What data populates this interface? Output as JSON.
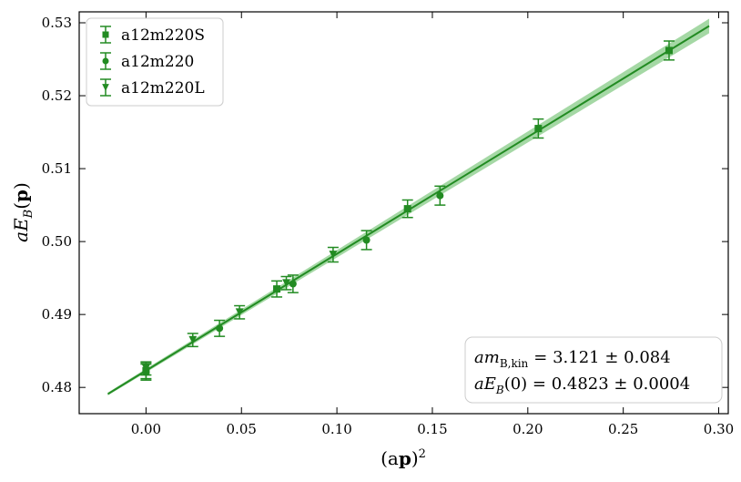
{
  "chart_data": {
    "type": "scatter",
    "xlabel": "(ap)²",
    "ylabel": "aE_B(p)",
    "xlim": [
      -0.035,
      0.305
    ],
    "ylim": [
      0.4764,
      0.5315
    ],
    "xticks": [
      0.0,
      0.05,
      0.1,
      0.15,
      0.2,
      0.25,
      0.3
    ],
    "xtick_labels": [
      "0.00",
      "0.05",
      "0.10",
      "0.15",
      "0.20",
      "0.25",
      "0.30"
    ],
    "yticks": [
      0.48,
      0.49,
      0.5,
      0.51,
      0.52,
      0.53
    ],
    "ytick_labels": [
      "0.48",
      "0.49",
      "0.50",
      "0.51",
      "0.52",
      "0.53"
    ],
    "grid": false,
    "legend_position": "top-left",
    "color": "#228b22",
    "band_color": "#7fc77f",
    "series": [
      {
        "name": "a12m220S",
        "marker": "square",
        "points": [
          {
            "x": 0.0,
            "y": 0.4823,
            "err": 0.0011
          },
          {
            "x": 0.0685,
            "y": 0.4935,
            "err": 0.0011
          },
          {
            "x": 0.137,
            "y": 0.5045,
            "err": 0.0012
          },
          {
            "x": 0.2055,
            "y": 0.5155,
            "err": 0.0013
          },
          {
            "x": 0.274,
            "y": 0.5262,
            "err": 0.0013
          }
        ]
      },
      {
        "name": "a12m220",
        "marker": "circle",
        "points": [
          {
            "x": 0.0,
            "y": 0.4821,
            "err": 0.0011
          },
          {
            "x": 0.0385,
            "y": 0.4881,
            "err": 0.0011
          },
          {
            "x": 0.077,
            "y": 0.4942,
            "err": 0.0012
          },
          {
            "x": 0.1155,
            "y": 0.5002,
            "err": 0.0013
          },
          {
            "x": 0.154,
            "y": 0.5063,
            "err": 0.0013
          }
        ]
      },
      {
        "name": "a12m220L",
        "marker": "triangle-down",
        "points": [
          {
            "x": 0.0,
            "y": 0.4826,
            "err": 0.0009
          },
          {
            "x": 0.0245,
            "y": 0.4865,
            "err": 0.0009
          },
          {
            "x": 0.049,
            "y": 0.4903,
            "err": 0.0009
          },
          {
            "x": 0.0735,
            "y": 0.4943,
            "err": 0.0009
          },
          {
            "x": 0.098,
            "y": 0.4982,
            "err": 0.001
          }
        ]
      }
    ],
    "fit": {
      "x_range": [
        -0.02,
        0.295
      ],
      "intercept": 0.4823,
      "slope": 0.1602,
      "band_start": 0.0002,
      "band_end": 0.001
    },
    "annotation": {
      "line1_lhs": "am",
      "line1_sub": "B,kin",
      "line1_rhs": "= 3.121 ± 0.084",
      "line2_lhs": "aE",
      "line2_sub": "B",
      "line2_rhs": "(0) = 0.4823 ± 0.0004"
    }
  }
}
